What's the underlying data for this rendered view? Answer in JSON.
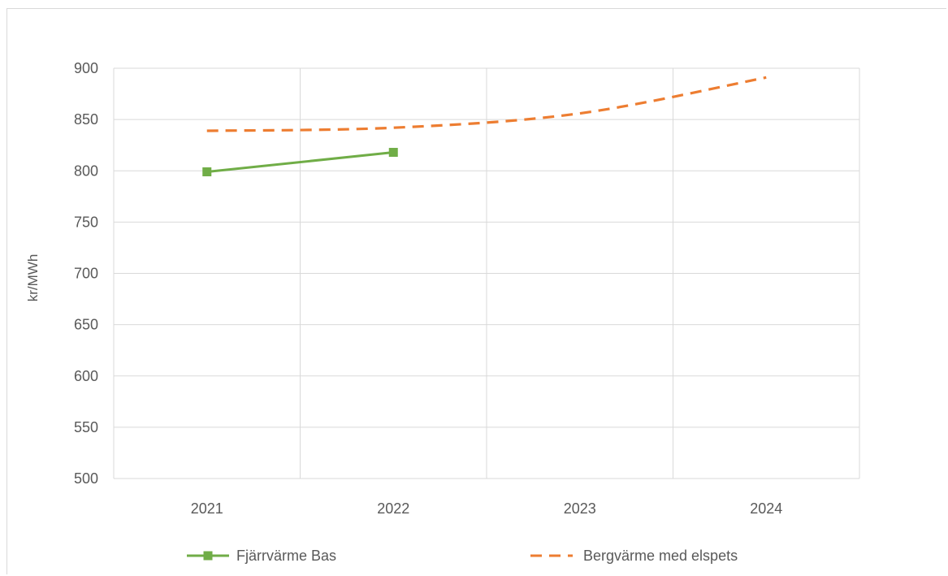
{
  "chart_data": {
    "type": "line",
    "title": "",
    "xlabel": "",
    "ylabel": "kr/MWh",
    "categories": [
      "2021",
      "2022",
      "2023",
      "2024"
    ],
    "ylim": [
      500,
      900
    ],
    "yticks": [
      "500",
      "550",
      "600",
      "650",
      "700",
      "750",
      "800",
      "850",
      "900"
    ],
    "grid": true,
    "legend_position": "bottom",
    "series": [
      {
        "name": "Fjärrvärme Bas",
        "values": [
          799,
          818,
          null,
          null
        ],
        "color": "#70ad47",
        "style": "solid",
        "marker": "square"
      },
      {
        "name": "Bergvärme med elspets",
        "values": [
          839,
          842,
          856,
          891
        ],
        "color": "#ed7d31",
        "style": "dashed",
        "smooth": true
      }
    ]
  }
}
